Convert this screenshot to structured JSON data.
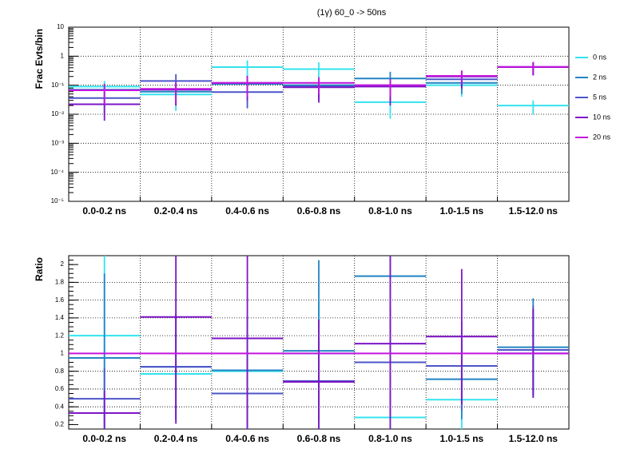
{
  "chart_data": [
    {
      "type": "step",
      "title": "(1γ) 60_0 -> 50ns",
      "y_label": "Frac Evts/bin",
      "categories": [
        "0.0-0.2 ns",
        "0.2-0.4 ns",
        "0.4-0.6 ns",
        "0.6-0.8 ns",
        "0.8-1.0 ns",
        "1.0-1.5 ns",
        "1.5-12.0 ns"
      ],
      "yscale": "log",
      "ylim": [
        1e-05,
        10
      ],
      "yticks": [
        {
          "value": 1e-05,
          "label": "10⁻⁵"
        },
        {
          "value": 0.0001,
          "label": "10⁻⁴"
        },
        {
          "value": 0.001,
          "label": "10⁻³"
        },
        {
          "value": 0.01,
          "label": "10⁻²"
        },
        {
          "value": 0.1,
          "label": "10⁻¹"
        },
        1,
        10
      ],
      "grid": true,
      "legend": "right",
      "series": [
        {
          "name": "0 ns",
          "color": "#33e3ee",
          "values": [
            0.09,
            0.048,
            0.42,
            0.36,
            0.026,
            0.1,
            0.02
          ],
          "errors": [
            0.05,
            0.035,
            0.3,
            0.25,
            0.019,
            0.06,
            0.01
          ]
        },
        {
          "name": "2 ns",
          "color": "#2284c4",
          "values": [
            0.07,
            0.06,
            0.11,
            0.1,
            0.17,
            0.12,
            0.42
          ],
          "errors": [
            0.04,
            0.04,
            0.07,
            0.06,
            0.12,
            0.07,
            0.2
          ]
        },
        {
          "name": "5 ns",
          "color": "#4d55c9",
          "values": [
            0.036,
            0.14,
            0.058,
            0.09,
            0.1,
            0.16,
            0.42
          ],
          "errors": [
            0.025,
            0.1,
            0.042,
            0.06,
            0.07,
            0.09,
            0.2
          ]
        },
        {
          "name": "10 ns",
          "color": "#7e16c6",
          "values": [
            0.022,
            0.07,
            0.12,
            0.085,
            0.09,
            0.2,
            0.42
          ],
          "errors": [
            0.016,
            0.05,
            0.09,
            0.06,
            0.07,
            0.12,
            0.2
          ]
        },
        {
          "name": "20 ns",
          "color": "#c414de",
          "values": [
            0.067,
            0.075,
            0.12,
            0.12,
            0.1,
            0.21,
            0.43
          ],
          "errors": [
            0.045,
            0.05,
            0.08,
            0.07,
            0.06,
            0.1,
            0.2
          ]
        }
      ]
    },
    {
      "type": "step",
      "y_label": "Ratio",
      "categories": [
        "0.0-0.2 ns",
        "0.2-0.4 ns",
        "0.4-0.6 ns",
        "0.6-0.8 ns",
        "0.8-1.0 ns",
        "1.0-1.5 ns",
        "1.5-12.0 ns"
      ],
      "ylim": [
        0.15,
        2.1
      ],
      "yticks": [
        0.2,
        0.4,
        0.6,
        0.8,
        1,
        1.2,
        1.4,
        1.6,
        1.8,
        2
      ],
      "grid": true,
      "series": [
        {
          "color": "#33e3ee",
          "values": [
            1.2,
            0.77,
            0.8,
            1.0,
            0.28,
            0.48,
            1.0
          ],
          "errors": [
            0.95,
            0.5,
            0.6,
            0.6,
            0.2,
            0.33,
            0.5
          ]
        },
        {
          "color": "#2284c4",
          "values": [
            0.95,
            0.85,
            0.81,
            1.03,
            1.87,
            0.71,
            1.07
          ],
          "errors": [
            0.95,
            0.6,
            0.6,
            1.02,
            0.8,
            0.45,
            0.55
          ]
        },
        {
          "color": "#4d55c9",
          "values": [
            0.49,
            0.85,
            0.55,
            0.69,
            0.9,
            0.86,
            1.04
          ],
          "errors": [
            0.35,
            0.6,
            0.4,
            0.45,
            0.6,
            0.5,
            0.5
          ]
        },
        {
          "color": "#7e16c6",
          "values": [
            0.33,
            1.41,
            1.17,
            0.68,
            1.11,
            1.19,
            1.0
          ],
          "errors": [
            0.25,
            1.2,
            1.1,
            0.7,
            1.0,
            0.76,
            0.5
          ]
        },
        {
          "color": "#c414de",
          "values": [
            1,
            1,
            1,
            1,
            1,
            1,
            1
          ]
        }
      ]
    }
  ]
}
